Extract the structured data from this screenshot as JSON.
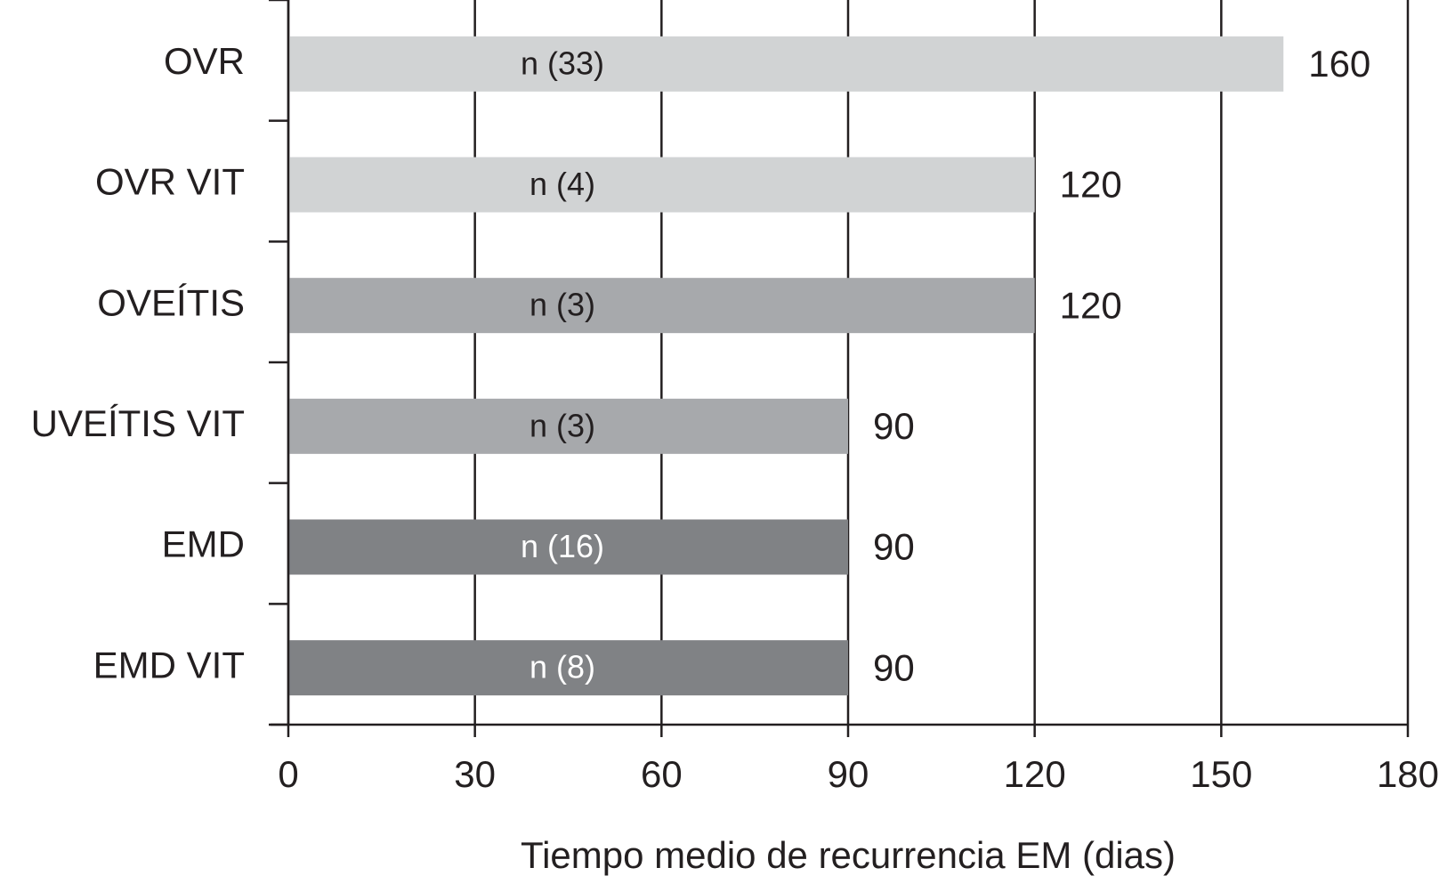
{
  "chart_data": {
    "type": "barh",
    "xlabel": "Tiempo medio de recurrencia EM (dias)",
    "categories": [
      "OVR",
      "OVR VIT",
      "OVEÍTIS",
      "UVEÍTIS VIT",
      "EMD",
      "EMD VIT"
    ],
    "values": [
      160,
      120,
      120,
      90,
      90,
      90
    ],
    "annotations": [
      "n (33)",
      "n (4)",
      "n (3)",
      "n (3)",
      "n (16)",
      "n (8)"
    ],
    "colors": [
      "#d1d3d4",
      "#d1d3d4",
      "#a7a9ac",
      "#a7a9ac",
      "#808285",
      "#808285"
    ],
    "annotation_colors": [
      "#231f20",
      "#231f20",
      "#231f20",
      "#231f20",
      "#ffffff",
      "#ffffff"
    ],
    "xlim": [
      0,
      180
    ],
    "xticks": [
      0,
      30,
      60,
      90,
      120,
      150,
      180
    ],
    "grid": true
  }
}
